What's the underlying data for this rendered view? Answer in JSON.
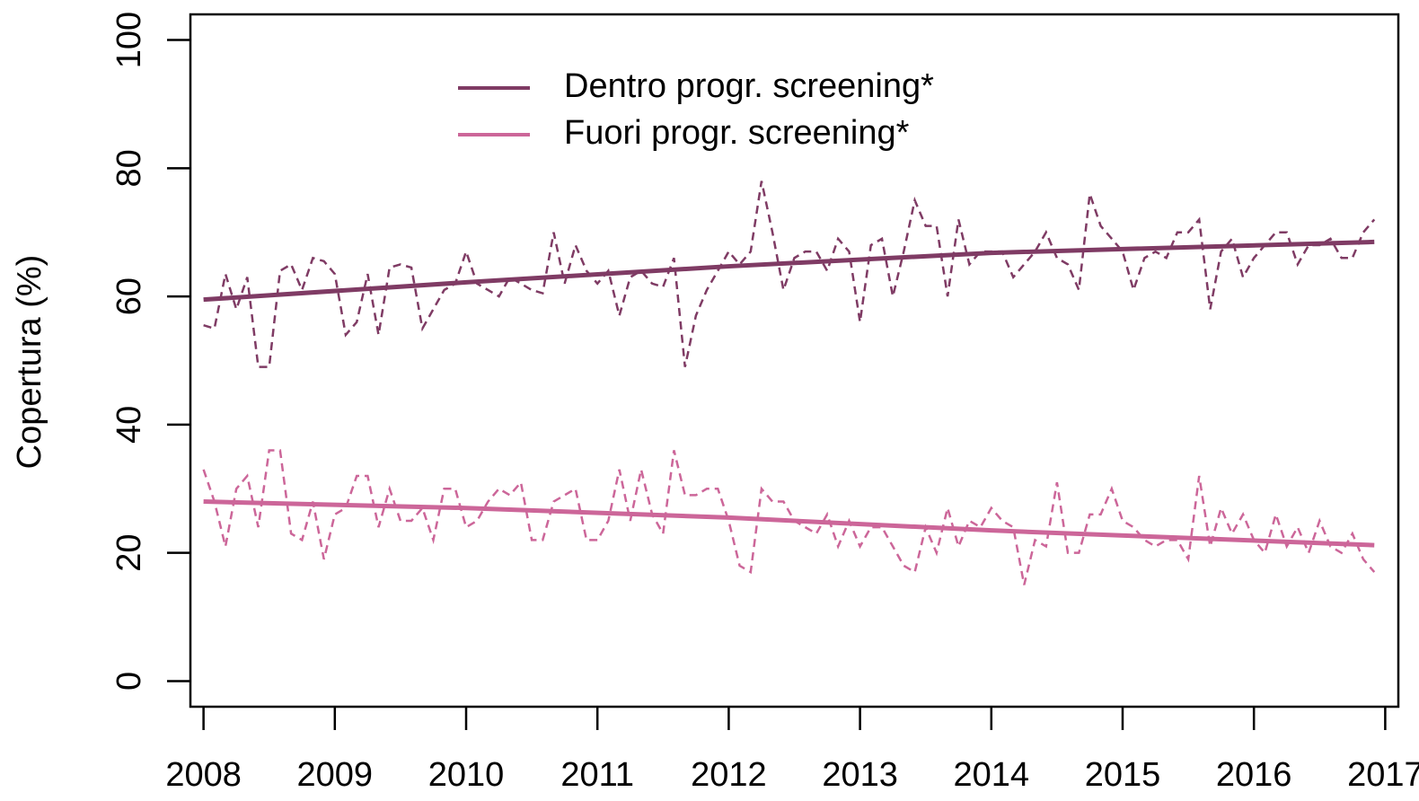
{
  "chart_data": {
    "type": "line",
    "ylabel": "Copertura (%)",
    "xlim": [
      2007.9,
      2017.1
    ],
    "ylim": [
      -4,
      104
    ],
    "xticks": [
      2008,
      2009,
      2010,
      2011,
      2012,
      2013,
      2014,
      2015,
      2016,
      2017
    ],
    "yticks": [
      0,
      20,
      40,
      60,
      80,
      100
    ],
    "legend": "top-left",
    "x": [
      2008,
      2008.083,
      2008.167,
      2008.25,
      2008.333,
      2008.417,
      2008.5,
      2008.583,
      2008.667,
      2008.75,
      2008.833,
      2008.917,
      2009,
      2009.083,
      2009.167,
      2009.25,
      2009.333,
      2009.417,
      2009.5,
      2009.583,
      2009.667,
      2009.75,
      2009.833,
      2009.917,
      2010,
      2010.083,
      2010.167,
      2010.25,
      2010.333,
      2010.417,
      2010.5,
      2010.583,
      2010.667,
      2010.75,
      2010.833,
      2010.917,
      2011,
      2011.083,
      2011.167,
      2011.25,
      2011.333,
      2011.417,
      2011.5,
      2011.583,
      2011.667,
      2011.75,
      2011.833,
      2011.917,
      2012,
      2012.083,
      2012.167,
      2012.25,
      2012.333,
      2012.417,
      2012.5,
      2012.583,
      2012.667,
      2012.75,
      2012.833,
      2012.917,
      2013,
      2013.083,
      2013.167,
      2013.25,
      2013.333,
      2013.417,
      2013.5,
      2013.583,
      2013.667,
      2013.75,
      2013.833,
      2013.917,
      2014,
      2014.083,
      2014.167,
      2014.25,
      2014.333,
      2014.417,
      2014.5,
      2014.583,
      2014.667,
      2014.75,
      2014.833,
      2014.917,
      2015,
      2015.083,
      2015.167,
      2015.25,
      2015.333,
      2015.417,
      2015.5,
      2015.583,
      2015.667,
      2015.75,
      2015.833,
      2015.917,
      2016,
      2016.083,
      2016.167,
      2016.25,
      2016.333,
      2016.417,
      2016.5,
      2016.583,
      2016.667,
      2016.75,
      2016.833,
      2016.917
    ],
    "series": [
      {
        "color": "#7f3b64",
        "dashed": true,
        "values": [
          55.5,
          55,
          63.5,
          58,
          63,
          49,
          49,
          64,
          65,
          61,
          66,
          65.5,
          63.5,
          54,
          56,
          63.5,
          54,
          64.5,
          65,
          64.5,
          55,
          58,
          61,
          62,
          67,
          62,
          61,
          60,
          63,
          62,
          61,
          60.5,
          70,
          62,
          68,
          64,
          62,
          64,
          57,
          63,
          64,
          62,
          61.5,
          66,
          49,
          57,
          61,
          64,
          67,
          65,
          67,
          78,
          70,
          61,
          66,
          67,
          67,
          64,
          69,
          67,
          56,
          68,
          69,
          60,
          67,
          75,
          71,
          71,
          60,
          72,
          65,
          67,
          67,
          67,
          63,
          65,
          67,
          70,
          66,
          65,
          61,
          76,
          71,
          69,
          67,
          61,
          66,
          67,
          66,
          70,
          70,
          72,
          58,
          67,
          69,
          63,
          66,
          68,
          70,
          70,
          65,
          68,
          68,
          69,
          66,
          66,
          70,
          72
        ]
      },
      {
        "color": "#cc6699",
        "dashed": true,
        "values": [
          33,
          28,
          21,
          30,
          32,
          24,
          36,
          36,
          23,
          22,
          28,
          19,
          26,
          27,
          32,
          32,
          24,
          30,
          25,
          25,
          27,
          22,
          30,
          30,
          24,
          25,
          28,
          30,
          29,
          31,
          22,
          22,
          28,
          29,
          30,
          22,
          22,
          25,
          33,
          25,
          33,
          26,
          23,
          36,
          29,
          29,
          30,
          30,
          25,
          18,
          17,
          30,
          28,
          28,
          25,
          24,
          23,
          26,
          21,
          25,
          21,
          24,
          24,
          21,
          18,
          17,
          24,
          20,
          27,
          21,
          25,
          24,
          27,
          25,
          24,
          15,
          22,
          21,
          31,
          20,
          20,
          26,
          26,
          30,
          25,
          24,
          22,
          21,
          22,
          22,
          19,
          32,
          21,
          27,
          23,
          26,
          22,
          20,
          26,
          21,
          24,
          20,
          25,
          21,
          20,
          23,
          19,
          17
        ]
      },
      {
        "name": "Dentro progr. screening*",
        "color": "#7f3b64",
        "x": [
          2008,
          2010,
          2012,
          2014,
          2016.917
        ],
        "values": [
          59.5,
          62.2,
          64.7,
          66.8,
          68.5
        ]
      },
      {
        "name": "Fuori progr. screening*",
        "color": "#cc6699",
        "x": [
          2008,
          2010,
          2012,
          2014,
          2016.917
        ],
        "values": [
          28,
          27,
          25.5,
          23.5,
          21.2
        ]
      }
    ]
  }
}
